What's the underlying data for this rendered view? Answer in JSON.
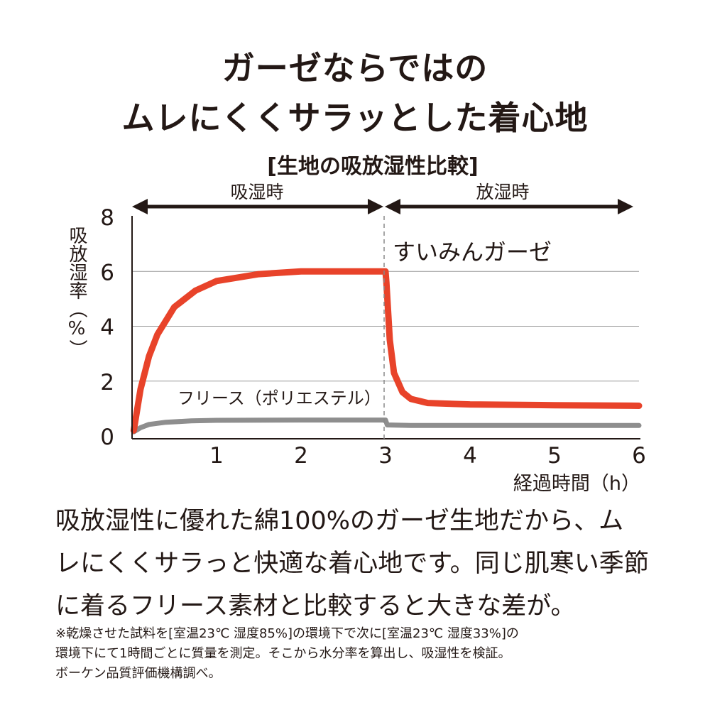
{
  "headline": {
    "line1": "ガーゼならではの",
    "line2": "ムレにくくサラッとした着心地"
  },
  "colors": {
    "gauze": "#e8432a",
    "fleece": "#8e8e8e",
    "text": "#231815",
    "grid": "#999999"
  },
  "chart_data": {
    "type": "line",
    "title": "[生地の吸放湿性比較]",
    "phases": [
      {
        "label": "吸湿時",
        "from": 0,
        "to": 3
      },
      {
        "label": "放湿時",
        "from": 3,
        "to": 6
      }
    ],
    "xlabel": "経過時間（h）",
    "ylabel": "吸放湿率（%）",
    "xlim": [
      0,
      6
    ],
    "ylim": [
      0,
      8
    ],
    "x_ticks": [
      "1",
      "2",
      "3",
      "4",
      "5",
      "6"
    ],
    "y_ticks": [
      "0",
      "2",
      "4",
      "6",
      "8"
    ],
    "grid": "horizontal",
    "series": [
      {
        "name": "すいみんガーゼ",
        "x": [
          0.02,
          0.1,
          0.2,
          0.3,
          0.5,
          0.75,
          1.0,
          1.5,
          2.0,
          2.5,
          3.0,
          3.01,
          3.05,
          3.1,
          3.2,
          3.3,
          3.5,
          4.0,
          5.0,
          6.0
        ],
        "values": [
          0.2,
          1.7,
          2.9,
          3.7,
          4.7,
          5.3,
          5.65,
          5.9,
          6.0,
          6.0,
          6.0,
          5.6,
          3.5,
          2.3,
          1.6,
          1.35,
          1.2,
          1.15,
          1.12,
          1.1
        ]
      },
      {
        "name": "フリース（ポリエステル）",
        "x": [
          0.02,
          0.1,
          0.2,
          0.4,
          0.7,
          1.0,
          2.0,
          3.0,
          3.02,
          3.3,
          4.0,
          5.0,
          6.0
        ],
        "values": [
          0.15,
          0.3,
          0.42,
          0.5,
          0.55,
          0.57,
          0.58,
          0.58,
          0.4,
          0.38,
          0.38,
          0.38,
          0.38
        ]
      }
    ]
  },
  "description": {
    "line1": "吸放湿性に優れた綿100%のガーゼ生地だから、ム",
    "line2": "レにくくサラっと快適な着心地です。同じ肌寒い季節",
    "line3": "に着るフリース素材と比較すると大きな差が。"
  },
  "note": {
    "line1": "※乾燥させた試料を[室温23℃ 湿度85%]の環境下で次に[室温23℃ 湿度33%]の",
    "line2": "環境下にて1時間ごとに質量を測定。そこから水分率を算出し、吸湿性を検証。",
    "line3": "ボーケン品質評価機構調べ。"
  }
}
